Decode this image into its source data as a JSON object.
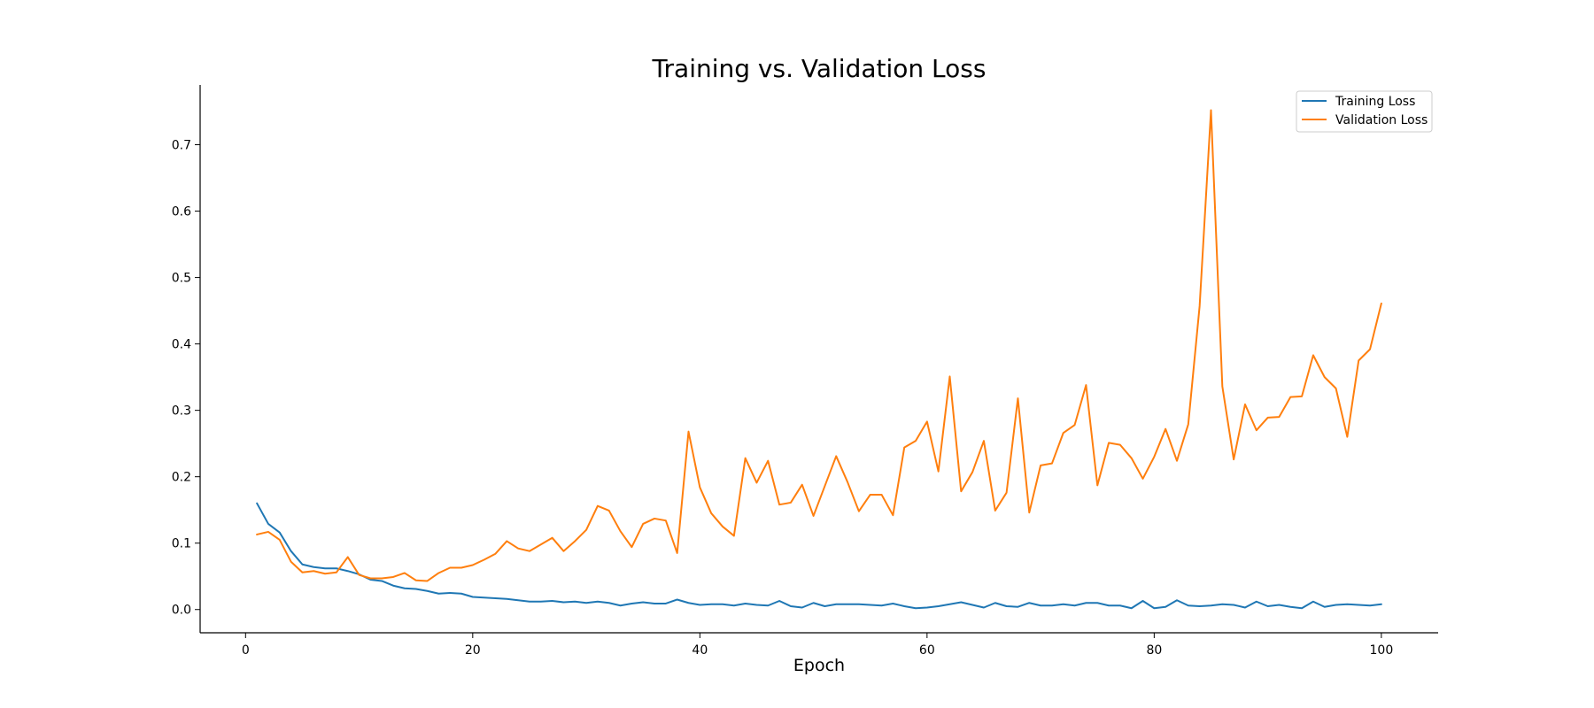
{
  "chart_data": {
    "type": "line",
    "title": "Training vs. Validation Loss",
    "xlabel": "Epoch",
    "ylabel": "",
    "xlim": [
      -4,
      105
    ],
    "ylim": [
      -0.035,
      0.79
    ],
    "xticks": [
      0,
      20,
      40,
      60,
      80,
      100
    ],
    "yticks": [
      0.0,
      0.1,
      0.2,
      0.3,
      0.4,
      0.5,
      0.6,
      0.7
    ],
    "grid": false,
    "legend_position": "top-right",
    "x_start": 1,
    "series": [
      {
        "name": "Training Loss",
        "color": "#1f77b4",
        "values": [
          0.16,
          0.129,
          0.116,
          0.088,
          0.068,
          0.064,
          0.062,
          0.062,
          0.058,
          0.053,
          0.045,
          0.043,
          0.036,
          0.032,
          0.031,
          0.028,
          0.024,
          0.025,
          0.024,
          0.019,
          0.018,
          0.017,
          0.016,
          0.014,
          0.012,
          0.012,
          0.013,
          0.011,
          0.012,
          0.01,
          0.012,
          0.01,
          0.006,
          0.009,
          0.011,
          0.009,
          0.009,
          0.015,
          0.01,
          0.007,
          0.008,
          0.008,
          0.006,
          0.009,
          0.007,
          0.006,
          0.013,
          0.005,
          0.003,
          0.01,
          0.005,
          0.008,
          0.008,
          0.008,
          0.007,
          0.006,
          0.009,
          0.005,
          0.002,
          0.003,
          0.005,
          0.008,
          0.011,
          0.007,
          0.003,
          0.01,
          0.005,
          0.004,
          0.01,
          0.006,
          0.006,
          0.008,
          0.006,
          0.01,
          0.01,
          0.006,
          0.006,
          0.002,
          0.013,
          0.002,
          0.004,
          0.014,
          0.006,
          0.005,
          0.006,
          0.008,
          0.007,
          0.003,
          0.012,
          0.005,
          0.007,
          0.004,
          0.002,
          0.012,
          0.004,
          0.007,
          0.008,
          0.007,
          0.006,
          0.008
        ]
      },
      {
        "name": "Validation Loss",
        "color": "#ff7f0e",
        "values": [
          0.113,
          0.117,
          0.105,
          0.072,
          0.056,
          0.058,
          0.054,
          0.056,
          0.079,
          0.052,
          0.047,
          0.047,
          0.049,
          0.055,
          0.044,
          0.043,
          0.055,
          0.063,
          0.063,
          0.067,
          0.075,
          0.084,
          0.103,
          0.092,
          0.088,
          0.098,
          0.108,
          0.088,
          0.103,
          0.12,
          0.156,
          0.149,
          0.118,
          0.094,
          0.129,
          0.137,
          0.134,
          0.085,
          0.268,
          0.184,
          0.145,
          0.125,
          0.111,
          0.228,
          0.191,
          0.224,
          0.158,
          0.161,
          0.188,
          0.141,
          0.186,
          0.231,
          0.192,
          0.148,
          0.173,
          0.173,
          0.142,
          0.244,
          0.254,
          0.283,
          0.208,
          0.351,
          0.178,
          0.207,
          0.254,
          0.149,
          0.176,
          0.318,
          0.146,
          0.217,
          0.22,
          0.266,
          0.278,
          0.338,
          0.187,
          0.251,
          0.248,
          0.228,
          0.197,
          0.23,
          0.272,
          0.224,
          0.279,
          0.457,
          0.752,
          0.336,
          0.226,
          0.309,
          0.27,
          0.289,
          0.29,
          0.32,
          0.321,
          0.383,
          0.35,
          0.333,
          0.26,
          0.375,
          0.392,
          0.461
        ]
      }
    ]
  }
}
